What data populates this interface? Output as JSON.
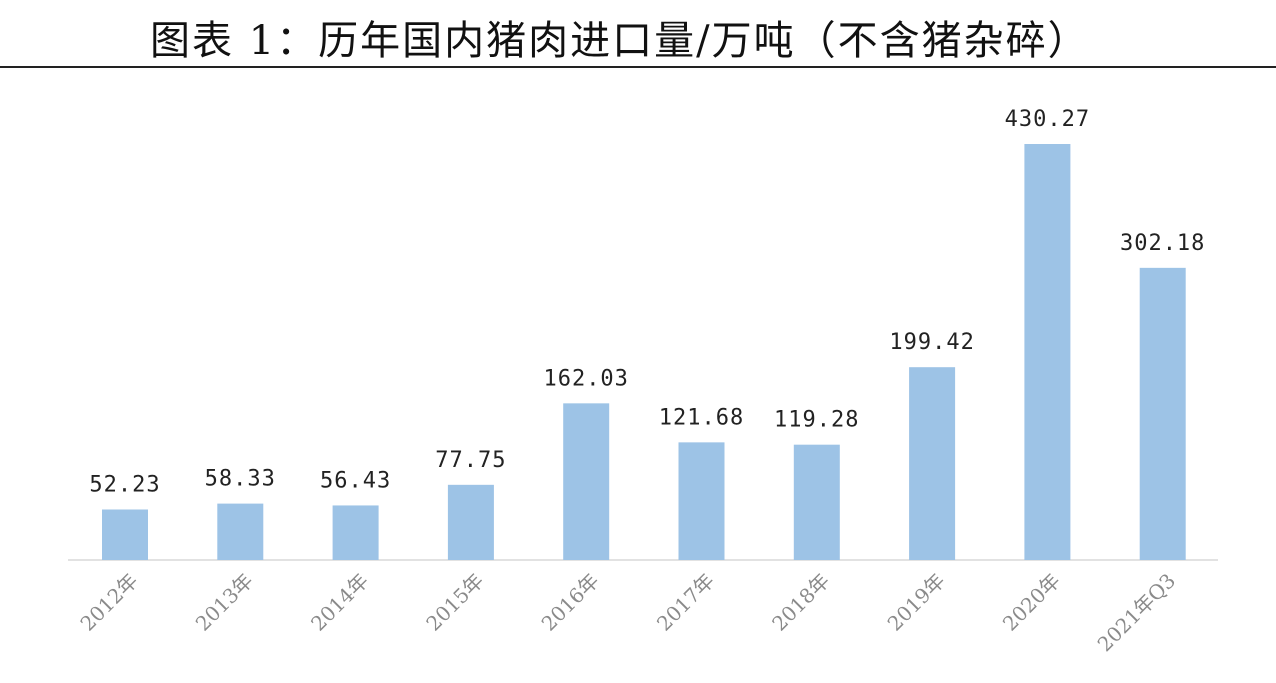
{
  "title": "图表 1：历年国内猪肉进口量/万吨（不含猪杂碎）",
  "colors": {
    "bar": "#9dc3e6",
    "axis": "#d9d9d9",
    "label": "#222222",
    "tick": "#8a8a8a"
  },
  "chart_data": {
    "type": "bar",
    "title": "图表 1：历年国内猪肉进口量/万吨（不含猪杂碎）",
    "categories": [
      "2012年",
      "2013年",
      "2014年",
      "2015年",
      "2016年",
      "2017年",
      "2018年",
      "2019年",
      "2020年",
      "2021年Q3"
    ],
    "values": [
      52.23,
      58.33,
      56.43,
      77.75,
      162.03,
      121.68,
      119.28,
      199.42,
      430.27,
      302.18
    ],
    "value_labels": [
      "52.23",
      "58.33",
      "56.43",
      "77.75",
      "162.03",
      "121.68",
      "119.28",
      "199.42",
      "430.27",
      "302.18"
    ],
    "xlabel": "",
    "ylabel": "",
    "ylim": [
      0,
      430.27
    ],
    "grid": false,
    "legend": "none"
  }
}
